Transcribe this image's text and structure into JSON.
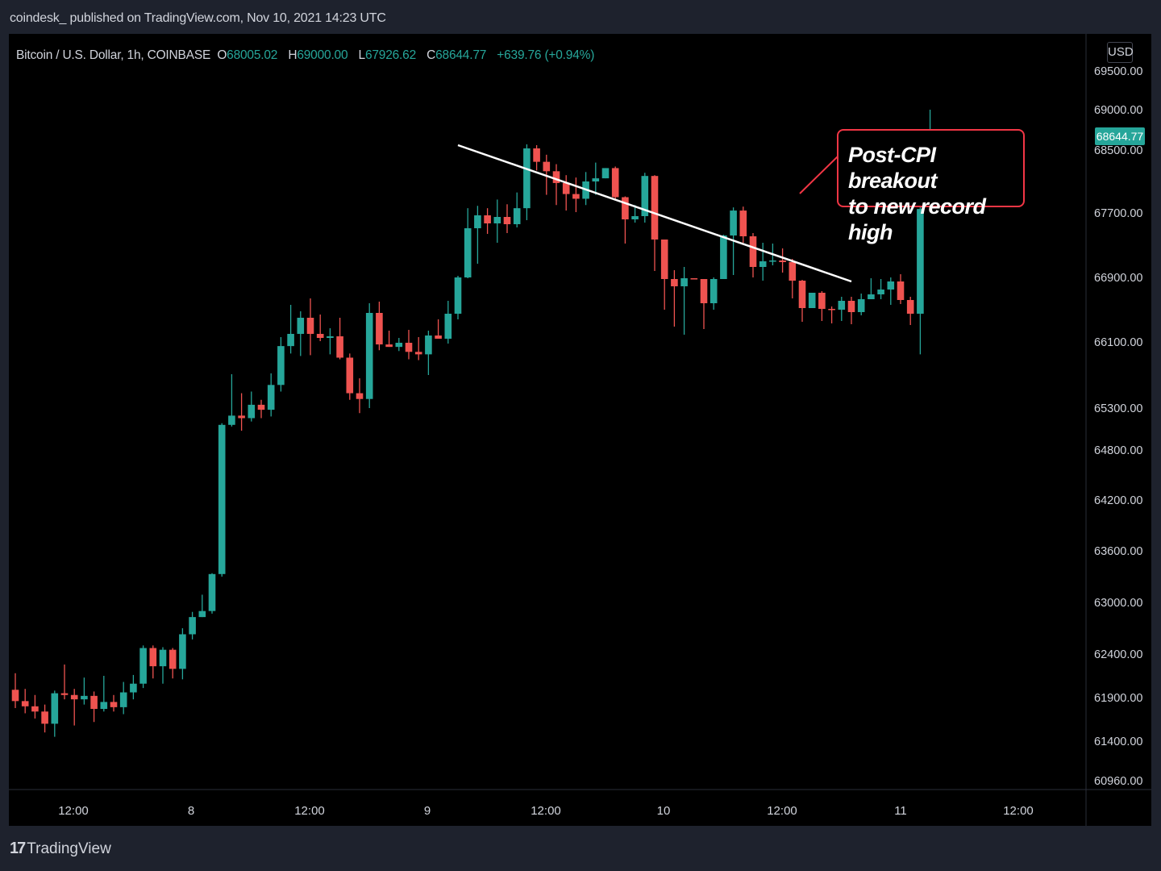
{
  "header": {
    "publisher_line": "coindesk_ published on TradingView.com, Nov 10, 2021 14:23 UTC"
  },
  "legend": {
    "symbol": "Bitcoin / U.S. Dollar, 1h, COINBASE",
    "o_label": "O",
    "o_value": "68005.02",
    "h_label": "H",
    "h_value": "69000.00",
    "l_label": "L",
    "l_value": "67926.62",
    "c_label": "C",
    "c_value": "68644.77",
    "change": "+639.76 (+0.94%)"
  },
  "currency": "USD",
  "last_price": "68644.77",
  "annotation": {
    "line1": "Post-CPI breakout",
    "line2": "to new record high"
  },
  "footer": {
    "logo_glyph": "17",
    "brand": "TradingView"
  },
  "colors": {
    "up": "#26a69a",
    "down": "#ef5350",
    "background": "#000000",
    "trendline": "#ffffff",
    "callout_border": "#f23645"
  },
  "chart_data": {
    "type": "candlestick",
    "interval": "1h",
    "y_ticks": [
      69500,
      69000,
      68500,
      67700,
      66900,
      66100,
      65300,
      64800,
      64200,
      63600,
      63000,
      62400,
      61900,
      61400,
      60960
    ],
    "y_tick_labels": [
      "69500.00",
      "69000.00",
      "68500.00",
      "67700.00",
      "66900.00",
      "66100.00",
      "65300.00",
      "64800.00",
      "64200.00",
      "63600.00",
      "63000.00",
      "62400.00",
      "61900.00",
      "61400.00",
      "60960.00"
    ],
    "x_tick_labels": [
      "12:00",
      "8",
      "12:00",
      "9",
      "12:00",
      "10",
      "12:00",
      "11",
      "12:00"
    ],
    "trendline": {
      "from": 68560,
      "to": 66850
    },
    "candles": [
      [
        61990,
        61860,
        62180,
        61780
      ],
      [
        61860,
        61800,
        62000,
        61720
      ],
      [
        61800,
        61740,
        61930,
        61660
      ],
      [
        61740,
        61600,
        61820,
        61500
      ],
      [
        61600,
        61950,
        61980,
        61450
      ],
      [
        61950,
        61930,
        62280,
        61880
      ],
      [
        61930,
        61880,
        62000,
        61580
      ],
      [
        61880,
        61920,
        62130,
        61820
      ],
      [
        61920,
        61770,
        61970,
        61620
      ],
      [
        61770,
        61850,
        62150,
        61740
      ],
      [
        61850,
        61790,
        61930,
        61740
      ],
      [
        61790,
        61960,
        62080,
        61710
      ],
      [
        61960,
        62060,
        62160,
        61880
      ],
      [
        62060,
        62470,
        62500,
        62010
      ],
      [
        62470,
        62260,
        62500,
        62120
      ],
      [
        62260,
        62450,
        62480,
        62060
      ],
      [
        62450,
        62230,
        62470,
        62120
      ],
      [
        62230,
        62630,
        62700,
        62110
      ],
      [
        62630,
        62830,
        62890,
        62570
      ],
      [
        62830,
        62900,
        63090,
        62830
      ],
      [
        62900,
        63330,
        63340,
        62870
      ],
      [
        63330,
        65100,
        65120,
        63300
      ],
      [
        65100,
        65210,
        65710,
        65080
      ],
      [
        65210,
        65180,
        65480,
        65030
      ],
      [
        65180,
        65340,
        65500,
        65140
      ],
      [
        65340,
        65280,
        65400,
        65180
      ],
      [
        65280,
        65580,
        65720,
        65200
      ],
      [
        65580,
        66050,
        66160,
        65500
      ],
      [
        66050,
        66200,
        66560,
        65960
      ],
      [
        66200,
        66400,
        66480,
        65930
      ],
      [
        66400,
        66200,
        66640,
        65940
      ],
      [
        66200,
        66150,
        66440,
        66110
      ],
      [
        66150,
        66170,
        66270,
        65950
      ],
      [
        66170,
        65910,
        66400,
        65890
      ],
      [
        65910,
        65480,
        65960,
        65400
      ],
      [
        65480,
        65410,
        65660,
        65240
      ],
      [
        65410,
        66460,
        66580,
        65300
      ],
      [
        66460,
        66070,
        66600,
        66000
      ],
      [
        66070,
        66040,
        66240,
        66040
      ],
      [
        66040,
        66090,
        66150,
        65990
      ],
      [
        66090,
        65980,
        66250,
        65890
      ],
      [
        65980,
        65950,
        66160,
        65880
      ],
      [
        65950,
        66180,
        66240,
        65700
      ],
      [
        66180,
        66140,
        66380,
        66140
      ],
      [
        66140,
        66450,
        66610,
        66080
      ],
      [
        66450,
        66900,
        66920,
        66380
      ],
      [
        66900,
        67510,
        67760,
        66890
      ],
      [
        67510,
        67670,
        67790,
        67070
      ],
      [
        67670,
        67570,
        67760,
        67440
      ],
      [
        67570,
        67650,
        67870,
        67330
      ],
      [
        67650,
        67560,
        67810,
        67450
      ],
      [
        67560,
        67760,
        67960,
        67520
      ],
      [
        67760,
        68520,
        68570,
        67610
      ],
      [
        68520,
        68350,
        68560,
        68240
      ],
      [
        68350,
        68230,
        68440,
        67930
      ],
      [
        68230,
        68080,
        68320,
        67800
      ],
      [
        68080,
        67940,
        68180,
        67730
      ],
      [
        67940,
        67880,
        68150,
        67710
      ],
      [
        67880,
        68100,
        68220,
        67800
      ],
      [
        68100,
        68140,
        68340,
        67930
      ],
      [
        68140,
        68270,
        68270,
        68140
      ],
      [
        68270,
        67900,
        68290,
        67870
      ],
      [
        67900,
        67620,
        67910,
        67320
      ],
      [
        67620,
        67660,
        67800,
        67580
      ],
      [
        67660,
        68170,
        68210,
        67580
      ],
      [
        68170,
        67370,
        68180,
        66980
      ],
      [
        67370,
        66880,
        67370,
        66500
      ],
      [
        66880,
        66790,
        66990,
        66290
      ],
      [
        66790,
        66890,
        67030,
        66190
      ],
      [
        66890,
        66880,
        66880,
        66880
      ],
      [
        66880,
        66580,
        66880,
        66260
      ],
      [
        66580,
        66880,
        66900,
        66500
      ],
      [
        66880,
        67420,
        67430,
        66880
      ],
      [
        67420,
        67730,
        67770,
        66930
      ],
      [
        67730,
        67410,
        67780,
        67330
      ],
      [
        67410,
        67030,
        67450,
        66900
      ],
      [
        67030,
        67100,
        67330,
        66860
      ],
      [
        67100,
        67110,
        67320,
        67050
      ],
      [
        67110,
        67090,
        67260,
        66960
      ],
      [
        67090,
        66860,
        67130,
        66640
      ],
      [
        66860,
        66520,
        66870,
        66350
      ],
      [
        66520,
        66710,
        66710,
        66520
      ],
      [
        66710,
        66510,
        66730,
        66360
      ],
      [
        66510,
        66500,
        66540,
        66330
      ],
      [
        66500,
        66610,
        66660,
        66360
      ],
      [
        66610,
        66470,
        66660,
        66320
      ],
      [
        66470,
        66630,
        66700,
        66430
      ],
      [
        66630,
        66690,
        66890,
        66630
      ],
      [
        66690,
        66750,
        66880,
        66630
      ],
      [
        66750,
        66850,
        66900,
        66560
      ],
      [
        66850,
        66620,
        66940,
        66570
      ],
      [
        66620,
        66450,
        66660,
        66310
      ],
      [
        66450,
        67750,
        67800,
        65950
      ],
      [
        68005.02,
        68644.77,
        69000,
        67926.62
      ]
    ]
  }
}
